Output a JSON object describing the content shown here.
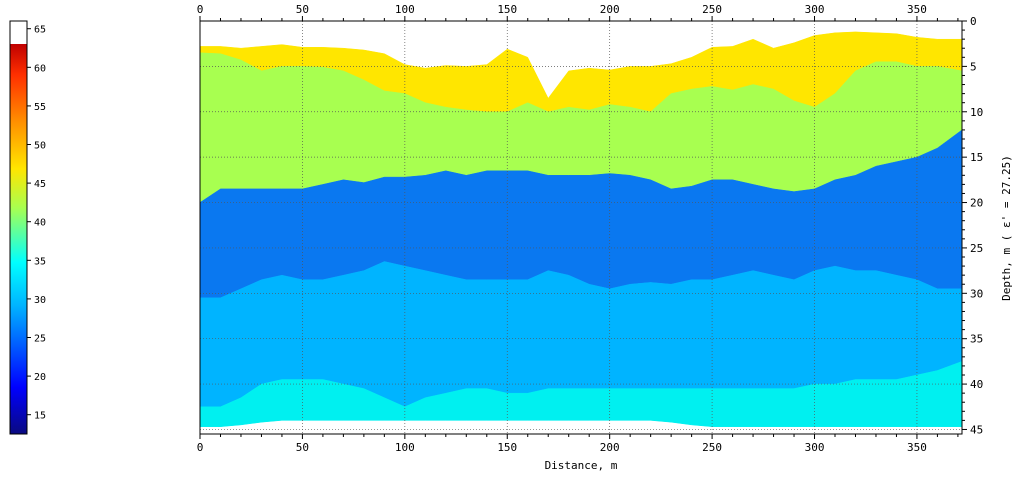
{
  "chart_data": {
    "type": "heatmap",
    "title": "",
    "xlabel": "Distance, m",
    "ylabel": "Depth, m  ( ε' = 27.25)",
    "xlim": [
      0,
      372
    ],
    "ylim": [
      0,
      45.5
    ],
    "y_inverted": true,
    "x_ticks": [
      "0",
      "50",
      "100",
      "150",
      "200",
      "250",
      "300",
      "350"
    ],
    "y_ticks": [
      "0",
      "5",
      "10",
      "15",
      "20",
      "25",
      "30",
      "35",
      "40",
      "45"
    ],
    "grid": true,
    "colorbar": {
      "ticks": [
        "15",
        "20",
        "25",
        "30",
        "35",
        "40",
        "45",
        "50",
        "55",
        "60",
        "65"
      ],
      "range": [
        12.5,
        66
      ]
    },
    "x": [
      0,
      10,
      20,
      30,
      40,
      50,
      60,
      70,
      80,
      90,
      100,
      110,
      120,
      130,
      140,
      150,
      160,
      170,
      180,
      190,
      200,
      210,
      220,
      230,
      240,
      250,
      260,
      270,
      280,
      290,
      300,
      310,
      320,
      330,
      340,
      350,
      360,
      372
    ],
    "layers": [
      {
        "value": 46,
        "color": "#ffe600",
        "top": [
          2.8,
          2.8,
          3.0,
          2.8,
          2.6,
          2.9,
          2.9,
          3.0,
          3.2,
          3.6,
          4.8,
          5.2,
          4.9,
          5.0,
          4.8,
          3.1,
          4.0,
          8.5,
          5.5,
          5.2,
          5.4,
          5.0,
          5.0,
          4.7,
          4.0,
          2.9,
          2.8,
          2.0,
          3.0,
          2.4,
          1.6,
          1.3,
          1.2,
          1.3,
          1.4,
          1.8,
          2.0,
          2.0
        ],
        "bottom": [
          3.5,
          3.6,
          4.3,
          5.5,
          5.0,
          5.0,
          5.1,
          5.5,
          6.5,
          7.7,
          8.0,
          9.0,
          9.5,
          9.8,
          10.0,
          10.0,
          9.0,
          10.0,
          9.5,
          9.8,
          9.2,
          9.5,
          10.0,
          8.0,
          7.5,
          7.2,
          7.6,
          7.0,
          7.5,
          8.8,
          9.5,
          8.0,
          5.5,
          4.5,
          4.5,
          5.0,
          5.0,
          5.5
        ]
      },
      {
        "value": 42,
        "color": "#a8ff50",
        "bottom": [
          20.0,
          18.5,
          18.5,
          18.5,
          18.5,
          18.5,
          18.0,
          17.5,
          17.8,
          17.2,
          17.2,
          17.0,
          16.5,
          17.0,
          16.5,
          16.5,
          16.5,
          17.0,
          17.0,
          17.0,
          16.8,
          17.0,
          17.5,
          18.5,
          18.2,
          17.5,
          17.5,
          18.0,
          18.5,
          18.8,
          18.5,
          17.5,
          17.0,
          16.0,
          15.5,
          15.0,
          14.0,
          12.0
        ]
      },
      {
        "value": 26,
        "color": "#0a78f0",
        "bottom": [
          30.5,
          30.5,
          29.5,
          28.5,
          28.0,
          28.5,
          28.5,
          28.0,
          27.5,
          26.5,
          27.0,
          27.5,
          28.0,
          28.5,
          28.5,
          28.5,
          28.5,
          27.5,
          28.0,
          29.0,
          29.5,
          29.0,
          28.8,
          29.0,
          28.5,
          28.5,
          28.0,
          27.5,
          28.0,
          28.5,
          27.5,
          27.0,
          27.5,
          27.5,
          28.0,
          28.5,
          29.5,
          29.5
        ]
      },
      {
        "value": 30,
        "color": "#00b4ff",
        "bottom": [
          42.5,
          42.5,
          41.5,
          40.0,
          39.5,
          39.5,
          39.5,
          40.0,
          40.5,
          41.5,
          42.5,
          41.5,
          41.0,
          40.5,
          40.5,
          41.0,
          41.0,
          40.5,
          40.5,
          40.5,
          40.5,
          40.5,
          40.5,
          40.5,
          40.5,
          40.5,
          40.5,
          40.5,
          40.5,
          40.5,
          40.0,
          40.0,
          39.5,
          39.5,
          39.5,
          39.0,
          38.5,
          37.5
        ]
      },
      {
        "value": 33,
        "color": "#00f0f0",
        "bottom": [
          44.7,
          44.7,
          44.5,
          44.2,
          44.0,
          44.0,
          44.0,
          44.0,
          44.0,
          44.0,
          44.0,
          44.0,
          44.0,
          44.0,
          44.0,
          44.0,
          44.0,
          44.0,
          44.0,
          44.0,
          44.0,
          44.0,
          44.0,
          44.2,
          44.5,
          44.7,
          44.7,
          44.7,
          44.7,
          44.7,
          44.7,
          44.7,
          44.7,
          44.7,
          44.7,
          44.7,
          44.7,
          44.7
        ]
      }
    ]
  }
}
